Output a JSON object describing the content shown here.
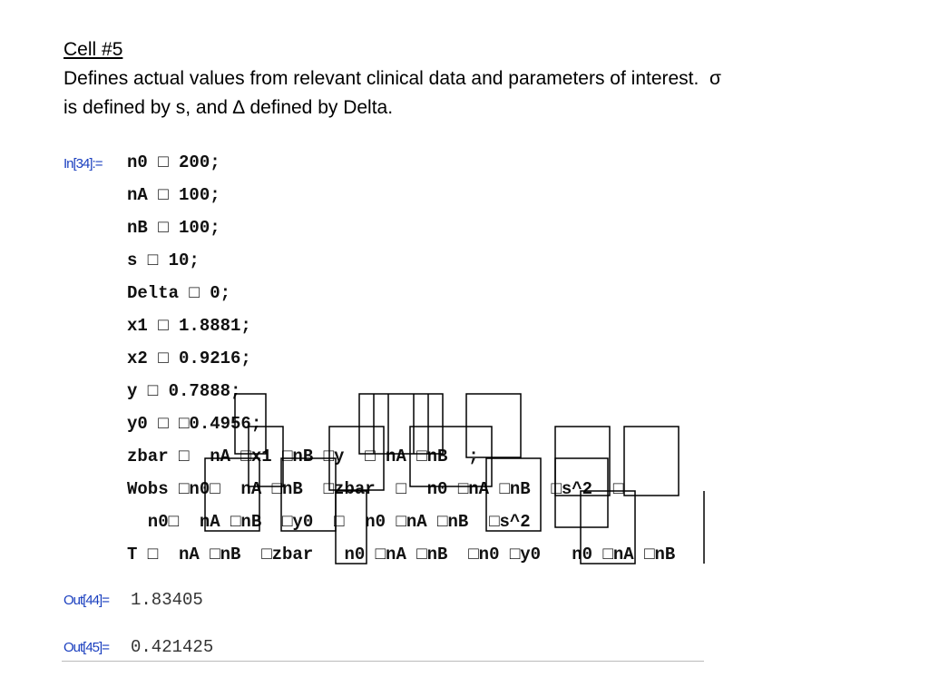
{
  "header": {
    "title": "Cell #5",
    "description": [
      "Defines actual values from relevant clinical data and parameters of interest.  σ",
      "is defined by s, and ∆ defined by Delta."
    ]
  },
  "input": {
    "label": "In[34]:=",
    "lines": [
      "n0 □ 200;",
      "nA □ 100;",
      "nB □ 100;",
      "s □ 10;",
      "Delta □ 0;",
      "x1 □ 1.8881;",
      "x2 □ 0.9216;",
      "y □ 0.7888;",
      "y0 □ □0.4956;",
      "zbar □  nA □x1 □nB □y  □ nA □nB  ;",
      "Wobs □n0□  nA □nB  □zbar  □  n0 □nA □nB  □s^2  □",
      "  n0□  nA □nB  □y0  □  n0 □nA □nB  □s^2",
      "T □  nA □nB  □zbar   n0 □nA □nB  □n0 □y0   n0 □nA □nB"
    ]
  },
  "outputs": [
    {
      "label": "Out[44]=",
      "value": "1.83405"
    },
    {
      "label": "Out[45]=",
      "value": "0.421425"
    }
  ]
}
